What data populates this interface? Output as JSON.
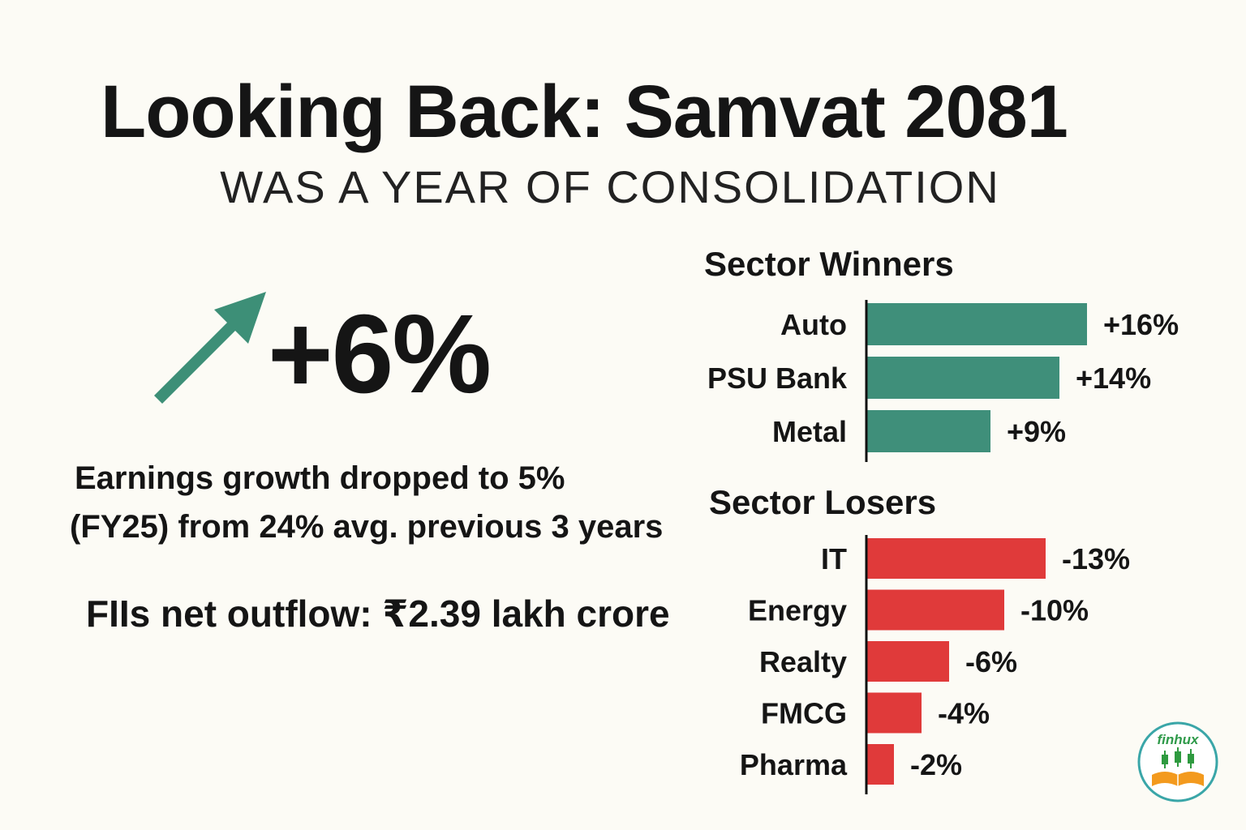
{
  "title": "Looking Back: Samvat 2081",
  "subtitle": "WAS A YEAR OF CONSOLIDATION",
  "headline": {
    "value": "+6%",
    "icon": "up-arrow-icon",
    "arrow_color": "#3d8f77"
  },
  "earnings": {
    "line1": "Earnings growth dropped to 5%",
    "line2": "(FY25) from 24% avg. previous 3 years"
  },
  "fii": {
    "text": "FIIs net outflow: ₹2.39 lakh crore"
  },
  "logo": {
    "text": "finhux",
    "icon": "candlestick-book-icon"
  },
  "chart_data": [
    {
      "type": "bar",
      "orientation": "horizontal",
      "title": "Sector Winners",
      "categories": [
        "Auto",
        "PSU Bank",
        "Metal"
      ],
      "values": [
        16,
        14,
        9
      ],
      "labels": [
        "+16%",
        "+14%",
        "+9%"
      ],
      "color": "#3f8f7a"
    },
    {
      "type": "bar",
      "orientation": "horizontal",
      "title": "Sector Losers",
      "categories": [
        "IT",
        "Energy",
        "Realty",
        "FMCG",
        "Pharma"
      ],
      "values": [
        -13,
        -10,
        -6,
        -4,
        -2
      ],
      "labels": [
        "-13%",
        "-10%",
        "-6%",
        "-4%",
        "-2%"
      ],
      "color": "#e03a3a"
    }
  ]
}
